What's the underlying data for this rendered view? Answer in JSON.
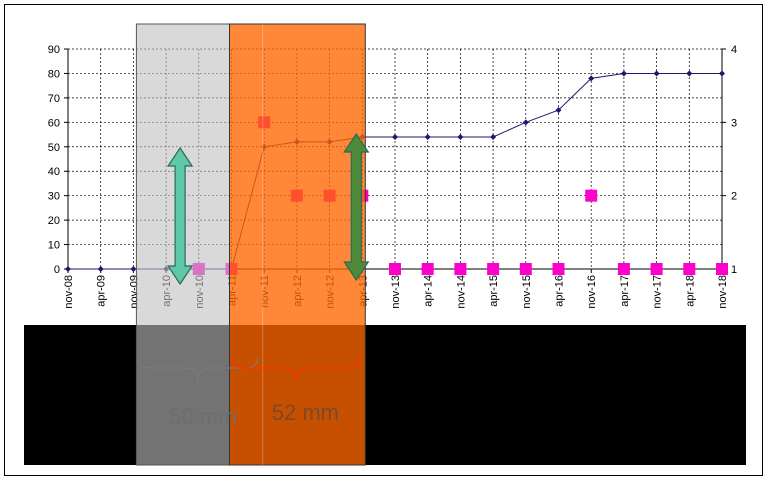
{
  "chart_data": {
    "type": "line",
    "categories": [
      "nov-08",
      "apr-09",
      "nov-09",
      "apr-10",
      "nov-10",
      "apr-11",
      "nov-11",
      "apr-12",
      "nov-12",
      "apr-13",
      "nov-13",
      "apr-14",
      "nov-14",
      "apr-15",
      "nov-15",
      "apr-16",
      "nov-16",
      "apr-17",
      "nov-17",
      "apr-18",
      "nov-18"
    ],
    "y_left": {
      "min": 0,
      "max": 90,
      "step": 10,
      "ticks": [
        "0",
        "10",
        "20",
        "30",
        "40",
        "50",
        "60",
        "70",
        "80",
        "90"
      ]
    },
    "y_right": {
      "min": 1,
      "max": 4,
      "step": 1,
      "ticks": [
        "1",
        "2",
        "3",
        "4"
      ]
    },
    "grid": true,
    "series": [
      {
        "axis": "left",
        "kind": "line",
        "color": "#1a1a6e",
        "values": [
          0,
          0,
          0,
          0,
          0,
          0,
          50,
          52,
          52,
          54,
          54,
          54,
          54,
          54,
          60,
          65,
          78,
          80,
          80,
          80,
          80
        ]
      },
      {
        "axis": "right",
        "kind": "scatter",
        "color": "#ff00cc",
        "values": [
          null,
          null,
          null,
          null,
          1,
          1,
          3,
          2,
          2,
          2,
          1,
          1,
          1,
          1,
          1,
          1,
          2,
          1,
          1,
          1,
          1
        ]
      }
    ],
    "annotations": {
      "band_left_label": "50 mm",
      "band_right_label": "52 mm",
      "band_left_color": "#bfbfbf",
      "band_right_color": "#ff6600"
    }
  }
}
